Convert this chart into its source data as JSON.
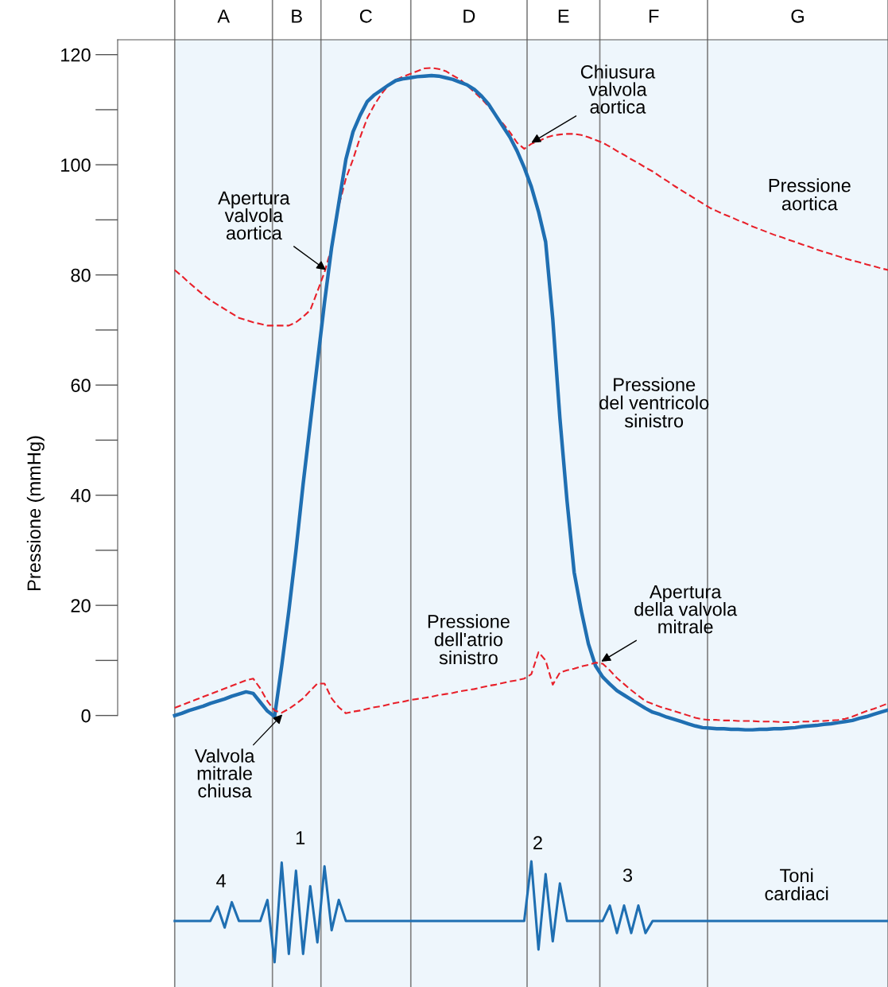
{
  "chart_data": {
    "type": "line",
    "ylabel": "Pressione (mmHg)",
    "ylim": [
      -49.3,
      122.7
    ],
    "categories": [
      null,
      null,
      null,
      null,
      null,
      null,
      null,
      null,
      null,
      null,
      null,
      null,
      null,
      null,
      null,
      null,
      null,
      null,
      null,
      null,
      null,
      null,
      null,
      null,
      null,
      null,
      null,
      null,
      null,
      null,
      null,
      null,
      null,
      null,
      null,
      null,
      null,
      null,
      null,
      null,
      null,
      null,
      null,
      null,
      null,
      null,
      null,
      null,
      null,
      null,
      null,
      null,
      null,
      null,
      null,
      null,
      null,
      null,
      null,
      null,
      null,
      null,
      null,
      null,
      null,
      null,
      null,
      null,
      null,
      null,
      null,
      null,
      null,
      null,
      null,
      null,
      null,
      null,
      null,
      null,
      null,
      null,
      null,
      null,
      null,
      null,
      null,
      null,
      null,
      null,
      null,
      null,
      null,
      null,
      null,
      null,
      null,
      null,
      null,
      null,
      null
    ],
    "yticks": [
      0,
      20,
      40,
      60,
      80,
      100,
      120
    ],
    "tick_labels": "y",
    "series": [
      {
        "name": "Pressione aortica",
        "color": "#e8202a",
        "line_style": "dashed",
        "values": [
          80.9,
          79.8,
          78.6,
          77.5,
          76.4,
          75.4,
          74.6,
          73.8,
          73,
          72.2,
          71.8,
          71.4,
          71.1,
          70.8,
          70.8,
          70.8,
          70.8,
          71.4,
          72.4,
          73.6,
          77,
          80.5,
          85,
          92.5,
          97.5,
          101,
          105,
          108.5,
          110.9,
          112.9,
          114.5,
          115.4,
          116,
          116.5,
          117,
          117.5,
          117.6,
          117.4,
          117,
          116.2,
          115.5,
          114.4,
          113.2,
          112,
          110.6,
          109,
          107.5,
          105.9,
          104,
          102.9,
          103.8,
          104.3,
          104.9,
          105.3,
          105.5,
          105.6,
          105.6,
          105.4,
          105,
          104.5,
          104,
          103.3,
          102.5,
          101.8,
          101,
          100.3,
          99.5,
          98.8,
          97.9,
          97.1,
          96.2,
          95.4,
          94.6,
          93.8,
          93,
          92.2,
          91.6,
          91,
          90.5,
          89.9,
          89.4,
          88.8,
          88.3,
          87.8,
          87.3,
          86.9,
          86.4,
          86,
          85.5,
          85.1,
          84.6,
          84.2,
          83.8,
          83.4,
          83,
          82.6,
          82.3,
          81.9,
          81.6,
          81.2,
          80.9
        ]
      },
      {
        "name": "Pressione del ventricolo sinistro",
        "color": "#1f6fb2",
        "line_style": "solid",
        "values": [
          0,
          0.4,
          0.9,
          1.3,
          1.7,
          2.2,
          2.6,
          3,
          3.5,
          3.9,
          4.3,
          4,
          2.4,
          0.8,
          -0.2,
          9,
          19,
          30,
          42,
          53,
          64,
          75,
          85,
          93,
          101,
          106,
          109,
          111.5,
          112.7,
          113.6,
          114.5,
          115.3,
          115.6,
          115.8,
          116,
          116.1,
          116.2,
          116.1,
          115.8,
          115.5,
          115,
          114.5,
          113.7,
          112.5,
          111,
          109,
          107,
          105,
          102.5,
          99.5,
          96,
          91.5,
          86,
          72,
          54,
          39,
          26,
          19,
          13,
          9,
          7,
          5.7,
          4.5,
          3.7,
          2.9,
          2.1,
          1.3,
          0.6,
          0.2,
          -0.3,
          -0.7,
          -1.1,
          -1.5,
          -1.9,
          -2.2,
          -2.3,
          -2.4,
          -2.4,
          -2.5,
          -2.5,
          -2.6,
          -2.6,
          -2.5,
          -2.5,
          -2.4,
          -2.4,
          -2.3,
          -2.2,
          -2,
          -1.9,
          -1.8,
          -1.6,
          -1.5,
          -1.3,
          -1.1,
          -0.9,
          -0.5,
          -0.2,
          0.2,
          0.6,
          1
        ]
      },
      {
        "name": "Pressione dell'atrio sinistro",
        "color": "#e8202a",
        "line_style": "dashed",
        "values": [
          1.4,
          1.9,
          2.4,
          2.9,
          3.4,
          3.9,
          4.4,
          4.9,
          5.4,
          5.9,
          6.4,
          6.7,
          4.9,
          2.6,
          0.9,
          0.5,
          1.2,
          2.1,
          3.1,
          4.5,
          5.8,
          5.8,
          3.1,
          1.5,
          0.4,
          0.7,
          0.9,
          1.2,
          1.5,
          1.7,
          2,
          2.3,
          2.5,
          2.8,
          3,
          3.2,
          3.4,
          3.7,
          3.9,
          4.1,
          4.4,
          4.6,
          4.8,
          5.1,
          5.4,
          5.6,
          5.9,
          6.2,
          6.4,
          6.7,
          7.5,
          11.5,
          10,
          5.6,
          7.8,
          8.2,
          8.5,
          8.9,
          9.2,
          9.6,
          9.4,
          8.2,
          6.8,
          5.7,
          4.6,
          3.6,
          2.6,
          2.1,
          1.6,
          1.2,
          0.8,
          0.4,
          0,
          -0.4,
          -0.7,
          -0.8,
          -0.8,
          -0.9,
          -0.9,
          -1,
          -1,
          -1,
          -1.1,
          -1.1,
          -1.1,
          -1.2,
          -1.2,
          -1.2,
          -1.1,
          -1.1,
          -1,
          -1,
          -0.9,
          -0.8,
          -0.6,
          -0.2,
          0.3,
          0.8,
          1.2,
          1.7,
          2.2
        ]
      },
      {
        "name": "Toni cardiaci",
        "color": "#1f6fb2",
        "line_style": "solid",
        "values": [
          -37.3,
          -37.3,
          -37.3,
          -37.3,
          -37.3,
          -37.3,
          -34.7,
          -38.5,
          -33.9,
          -37.3,
          -37.3,
          -37.3,
          -37.3,
          -33.5,
          -44.8,
          -26.7,
          -43.3,
          -28.2,
          -43.3,
          -31,
          -41.2,
          -27.4,
          -39,
          -33.5,
          -37.3,
          -37.3,
          -37.3,
          -37.3,
          -37.3,
          -37.3,
          -37.3,
          -37.3,
          -37.3,
          -37.3,
          -37.3,
          -37.3,
          -37.3,
          -37.3,
          -37.3,
          -37.3,
          -37.3,
          -37.3,
          -37.3,
          -37.3,
          -37.3,
          -37.3,
          -37.3,
          -37.3,
          -37.3,
          -37.3,
          -26.5,
          -42.5,
          -28.8,
          -41,
          -30.5,
          -37.3,
          -37.3,
          -37.3,
          -37.3,
          -37.3,
          -37.3,
          -34.5,
          -39.5,
          -34.5,
          -39.5,
          -34.5,
          -39.5,
          -37.3,
          -37.3,
          -37.3,
          -37.3,
          -37.3,
          -37.3,
          -37.3,
          -37.3,
          -37.3,
          -37.3,
          -37.3,
          -37.3,
          -37.3,
          -37.3,
          -37.3,
          -37.3,
          -37.3,
          -37.3,
          -37.3,
          -37.3,
          -37.3,
          -37.3,
          -37.3,
          -37.3,
          -37.3,
          -37.3,
          -37.3,
          -37.3,
          -37.3,
          -37.3,
          -37.3,
          -37.3,
          -37.3,
          -37.3
        ]
      }
    ],
    "annotations": [
      "A",
      "B",
      "C",
      "D",
      "E",
      "F",
      "G",
      "Apertura\nvalvola\naortica",
      "Chiusura\nvalvola\naortica",
      "Valvola\nmitrale\nchiusa",
      "Apertura\ndella valvola\nmitrale",
      "1",
      "2",
      "3",
      "4"
    ]
  }
}
